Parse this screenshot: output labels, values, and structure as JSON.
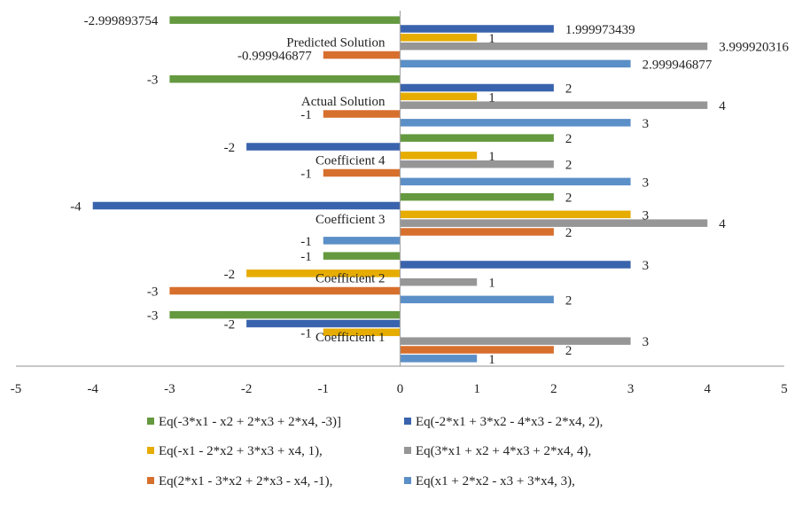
{
  "chart_data": {
    "type": "bar",
    "orientation": "horizontal",
    "title": "",
    "xlabel": "",
    "ylabel": "",
    "xlim": [
      -5,
      5
    ],
    "x_ticks": [
      -5,
      -4,
      -3,
      -2,
      -1,
      0,
      1,
      2,
      3,
      4,
      5
    ],
    "grid": false,
    "legend_position": "bottom",
    "categories": [
      "Coefficient 1",
      "Coefficient 2",
      "Coefficient 3",
      "Coefficient 4",
      "Actual Solution",
      "Predicted Solution"
    ],
    "series": [
      {
        "name": "Eq(x1 + 2*x2 - x3 + 3*x4, 3),",
        "color": "#5b8fc7",
        "values": [
          1,
          2,
          -1,
          3,
          3,
          2.999946877
        ],
        "labels": [
          "1",
          "2",
          "-1",
          "3",
          "3",
          "2.999946877"
        ]
      },
      {
        "name": "Eq(2*x1 - 3*x2 + 2*x3 - x4, -1),",
        "color": "#d76f2d",
        "values": [
          2,
          -3,
          2,
          -1,
          -1,
          -0.999946877
        ],
        "labels": [
          "2",
          "-3",
          "2",
          "-1",
          "-1",
          "-0.999946877"
        ]
      },
      {
        "name": "Eq(3*x1 + x2 + 4*x3 + 2*x4, 4),",
        "color": "#969696",
        "values": [
          3,
          1,
          4,
          2,
          4,
          3.999920316
        ],
        "labels": [
          "3",
          "1",
          "4",
          "2",
          "4",
          "3.999920316"
        ]
      },
      {
        "name": "Eq(-x1 - 2*x2 + 3*x3 + x4, 1),",
        "color": "#e6ac00",
        "values": [
          -1,
          -2,
          3,
          1,
          1,
          1
        ],
        "labels": [
          "-1",
          "-2",
          "3",
          "1",
          "1",
          "1"
        ]
      },
      {
        "name": "Eq(-2*x1 + 3*x2 - 4*x3 - 2*x4, 2),",
        "color": "#3a63ad",
        "values": [
          -2,
          3,
          -4,
          -2,
          2,
          1.999973439
        ],
        "labels": [
          "-2",
          "3",
          "-4",
          "-2",
          "2",
          "1.999973439"
        ]
      },
      {
        "name": "Eq(-3*x1 - x2 + 2*x3 + 2*x4, -3)]",
        "color": "#64993f",
        "values": [
          -3,
          -1,
          2,
          2,
          -3,
          -2.999893754
        ],
        "labels": [
          "-3",
          "-1",
          "2",
          "2",
          "-3",
          "-2.999893754"
        ]
      }
    ],
    "legend_order": [
      5,
      4,
      3,
      2,
      1,
      0
    ]
  }
}
